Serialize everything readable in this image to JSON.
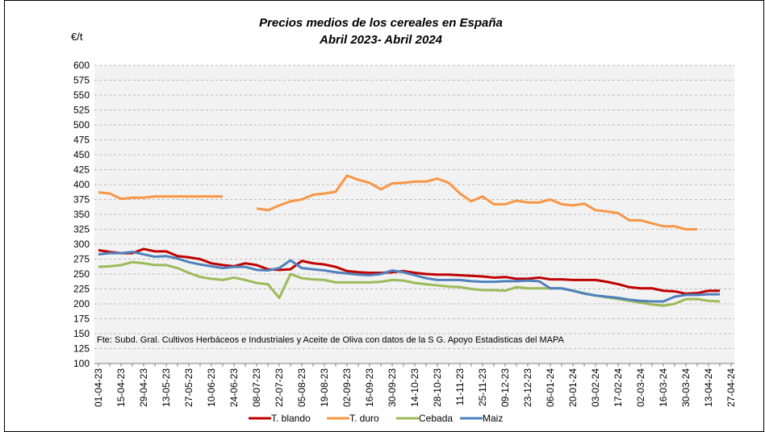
{
  "chart_data": {
    "type": "line",
    "title": "Precios medios de los cereales en España",
    "subtitle": "Abril 2023- Abril 2024",
    "y_label": "€/t",
    "note": "Fte: Subd. Gral. Cultivos Herbáceos e Industriales y Aceite de Oliva con datos de la S G. Apoyo Estadisticas del MAPA",
    "categories": [
      "01-04-23",
      null,
      "15-04-23",
      null,
      "29-04-23",
      null,
      "13-05-23",
      null,
      "27-05-23",
      null,
      "10-06-23",
      null,
      "24-06-23",
      null,
      "08-07-23",
      null,
      "22-07-23",
      null,
      "05-08-23",
      null,
      "19-08-23",
      null,
      "02-09-23",
      null,
      "16-09-23",
      null,
      "30-09-23",
      null,
      "14-10-23",
      null,
      "28-10-23",
      null,
      "11-11-23",
      null,
      "25-11-23",
      null,
      "09-12-23",
      null,
      "23-12-23",
      null,
      "06-01-24",
      null,
      "20-01-24",
      null,
      "03-02-24",
      null,
      "17-02-24",
      null,
      "02-03-24",
      null,
      "16-03-24",
      null,
      "30-03-24",
      null,
      "13-04-24",
      null,
      "27-04-24"
    ],
    "series": [
      {
        "name": "T. blando",
        "color": "#c00000",
        "values": [
          290,
          287,
          285,
          285,
          292,
          288,
          288,
          280,
          278,
          275,
          268,
          265,
          263,
          268,
          265,
          258,
          257,
          258,
          272,
          268,
          266,
          262,
          255,
          253,
          252,
          252,
          253,
          255,
          252,
          250,
          249,
          249,
          248,
          247,
          246,
          244,
          245,
          242,
          242,
          244,
          241,
          241,
          240,
          240,
          240,
          237,
          233,
          228,
          226,
          226,
          222,
          221,
          217,
          218,
          222,
          222,
          null
        ]
      },
      {
        "name": "T. duro",
        "color": "#f79646",
        "values": [
          387,
          385,
          376,
          378,
          378,
          380,
          380,
          380,
          380,
          380,
          380,
          380,
          null,
          null,
          360,
          357,
          365,
          372,
          375,
          383,
          385,
          388,
          415,
          408,
          403,
          392,
          402,
          403,
          405,
          405,
          410,
          403,
          385,
          372,
          380,
          367,
          367,
          373,
          370,
          370,
          375,
          367,
          365,
          368,
          357,
          355,
          352,
          340,
          340,
          335,
          330,
          330,
          325,
          325,
          null,
          null,
          null
        ]
      },
      {
        "name": "Cebada",
        "color": "#9bbb59",
        "values": [
          262,
          263,
          265,
          270,
          268,
          265,
          265,
          260,
          252,
          245,
          242,
          240,
          244,
          240,
          235,
          233,
          210,
          250,
          243,
          241,
          240,
          236,
          236,
          236,
          236,
          237,
          240,
          239,
          235,
          233,
          231,
          229,
          228,
          225,
          223,
          223,
          222,
          228,
          226,
          226,
          226,
          226,
          222,
          218,
          214,
          211,
          208,
          205,
          202,
          199,
          197,
          200,
          208,
          208,
          205,
          204,
          null
        ]
      },
      {
        "name": "Maiz",
        "color": "#4f81bd",
        "values": [
          283,
          285,
          285,
          287,
          283,
          279,
          280,
          276,
          270,
          266,
          263,
          260,
          262,
          262,
          257,
          256,
          260,
          273,
          260,
          258,
          256,
          253,
          251,
          249,
          248,
          250,
          256,
          253,
          248,
          243,
          240,
          240,
          240,
          238,
          237,
          237,
          238,
          238,
          239,
          238,
          226,
          226,
          222,
          217,
          214,
          212,
          210,
          207,
          205,
          204,
          204,
          212,
          215,
          215,
          216,
          216,
          null
        ]
      }
    ],
    "ylim": [
      100,
      600
    ],
    "yticks": [
      100,
      125,
      150,
      175,
      200,
      225,
      250,
      275,
      300,
      325,
      350,
      375,
      400,
      425,
      450,
      475,
      500,
      525,
      550,
      575,
      600
    ],
    "grid": true,
    "legend": "bottom"
  }
}
